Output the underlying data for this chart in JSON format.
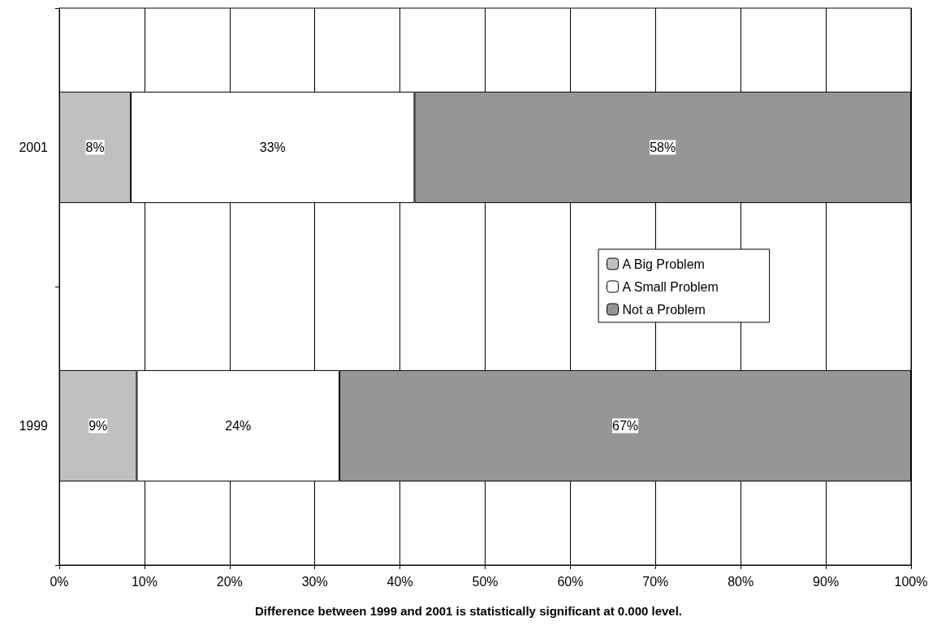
{
  "chart_data": {
    "type": "bar",
    "orientation": "horizontal",
    "stacked": true,
    "categories": [
      "2001",
      "1999"
    ],
    "series": [
      {
        "name": "A Big Problem",
        "color": "#c0c0c0",
        "values": [
          8.4,
          9.1
        ],
        "value_labels": [
          "8%",
          "9%"
        ]
      },
      {
        "name": "A Small Problem",
        "color": "#ffffff",
        "values": [
          33.3,
          23.8
        ],
        "value_labels": [
          "33%",
          "24%"
        ]
      },
      {
        "name": "Not a Problem",
        "color": "#969696",
        "values": [
          58.3,
          67.1
        ],
        "value_labels": [
          "58%",
          "67%"
        ]
      }
    ],
    "xlim": [
      0,
      100
    ],
    "xticks": [
      {
        "value": 0,
        "label": "0%"
      },
      {
        "value": 10,
        "label": "10%"
      },
      {
        "value": 20,
        "label": "20%"
      },
      {
        "value": 30,
        "label": "30%"
      },
      {
        "value": 40,
        "label": "40%"
      },
      {
        "value": 50,
        "label": "50%"
      },
      {
        "value": 60,
        "label": "60%"
      },
      {
        "value": 70,
        "label": "70%"
      },
      {
        "value": 80,
        "label": "80%"
      },
      {
        "value": 90,
        "label": "90%"
      },
      {
        "value": 100,
        "label": "100%"
      }
    ],
    "grid": "x",
    "legend": "right",
    "annotations": [
      "Difference between 1999 and 2001 is statistically significant at 0.000 level."
    ]
  }
}
